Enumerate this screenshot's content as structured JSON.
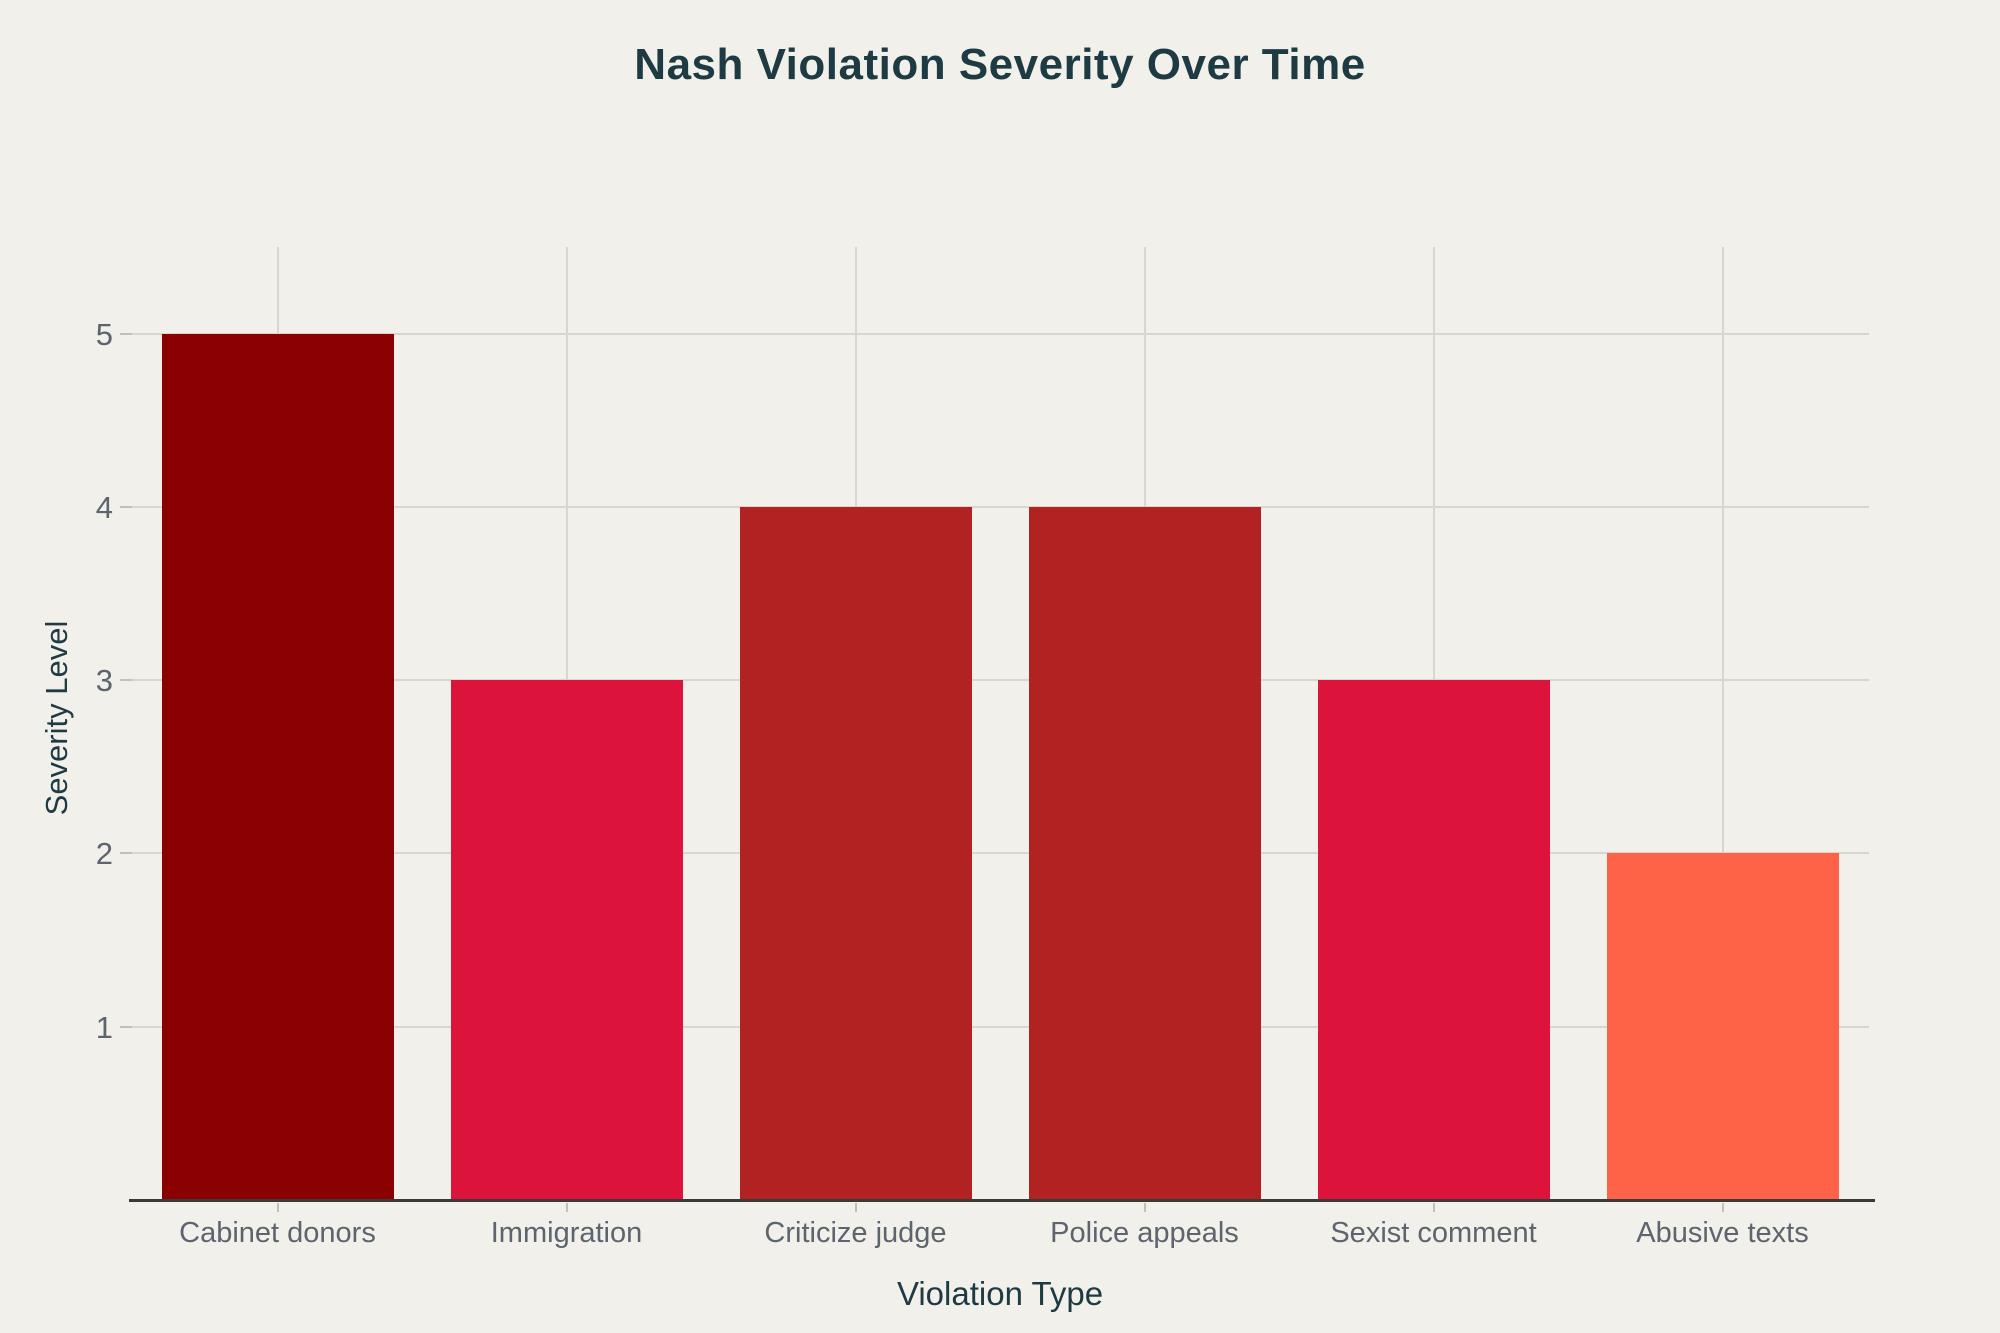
{
  "chart_data": {
    "type": "bar",
    "title": "Nash Violation Severity Over Time",
    "xlabel": "Violation Type",
    "ylabel": "Severity Level",
    "categories": [
      "Cabinet donors",
      "Immigration",
      "Criticize judge",
      "Police appeals",
      "Sexist comment",
      "Abusive texts"
    ],
    "values": [
      5,
      3,
      4,
      4,
      3,
      2
    ],
    "bar_colors": [
      "#8B0000",
      "#DC143C",
      "#B22222",
      "#B22222",
      "#DC143C",
      "#FF6347"
    ],
    "yticks": [
      1,
      2,
      3,
      4,
      5
    ],
    "ylim": [
      0,
      5.5
    ],
    "grid": true,
    "legend": "none"
  },
  "colors": {
    "background": "#F1F0EA",
    "title_text": "#1E3A42",
    "tick_text": "#5D646E",
    "gridline": "#D8D6CE",
    "axis_line": "#3A3A38",
    "tick_mark": "#C2C1B9"
  }
}
